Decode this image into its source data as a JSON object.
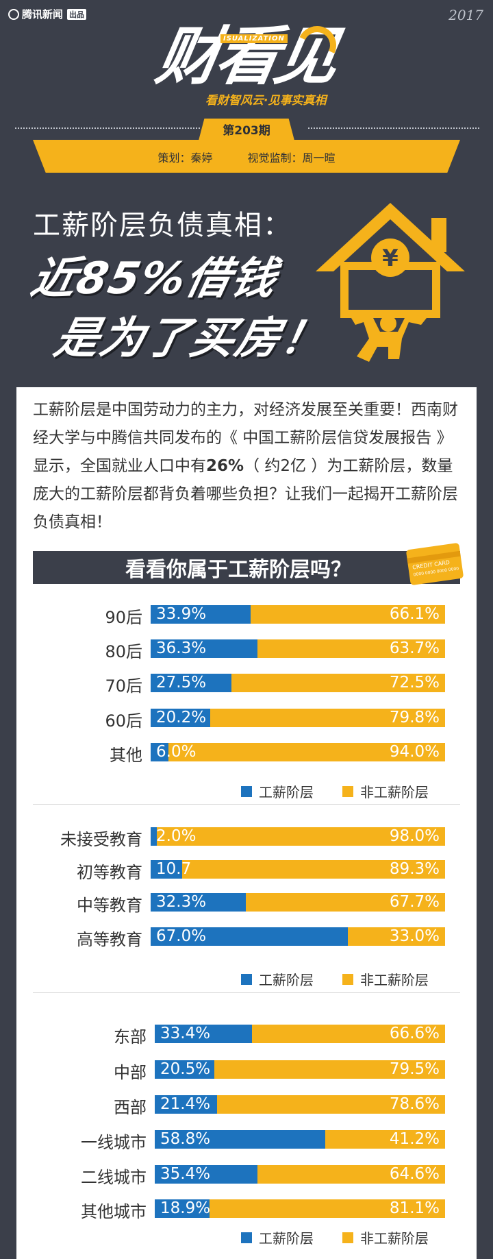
{
  "header": {
    "brand": "腾讯新闻",
    "brand_tag": "出品",
    "year": "2017",
    "title_main": "财看见",
    "title_en": "ISUALIZATION",
    "slogan": "看财智风云·见事实真相",
    "issue": "第203期",
    "planner": "策划：秦婷",
    "visual": "视觉监制：周一暄"
  },
  "headline": {
    "line1": "工薪阶层负债真相：",
    "line2": "近85%借钱",
    "line3": "是为了买房！",
    "house_symbol": "¥"
  },
  "intro": {
    "part1": "工薪阶层是中国劳动力的主力，对经济发展至关重要！西南财经大学与中腾信共同发布的《 中国工薪阶层信贷发展报告 》显示，全国就业人口中有",
    "highlight": "26%",
    "part2": "（ 约2亿 ）为工薪阶层，数量庞大的工薪阶层都背负着哪些负担？让我们一起揭开工薪阶层负债真相！"
  },
  "section_title": "看看你属于工薪阶层吗？",
  "card": {
    "text1": "CREDIT CARD",
    "text2": "0000 0000 0000 0000"
  },
  "colors": {
    "working": "#1d73be",
    "non_working": "#f5b21b",
    "background": "#3b3f4a"
  },
  "legend": {
    "working": "工薪阶层",
    "non_working": "非工薪阶层"
  },
  "chart_data": [
    {
      "type": "bar",
      "stacked": true,
      "orientation": "horizontal",
      "categories": [
        "90后",
        "80后",
        "70后",
        "60后",
        "其他"
      ],
      "series": [
        {
          "name": "工薪阶层",
          "values": [
            33.9,
            36.3,
            27.5,
            20.2,
            6.0
          ],
          "labels": [
            "33.9%",
            "36.3%",
            "27.5%",
            "20.2%",
            "6.0%"
          ]
        },
        {
          "name": "非工薪阶层",
          "values": [
            66.1,
            63.7,
            72.5,
            79.8,
            94.0
          ],
          "labels": [
            "66.1%",
            "63.7%",
            "72.5%",
            "79.8%",
            "94.0%"
          ]
        }
      ],
      "xlim": [
        0,
        100
      ],
      "legend": "bottom"
    },
    {
      "type": "bar",
      "stacked": true,
      "orientation": "horizontal",
      "categories": [
        "未接受教育",
        "初等教育",
        "中等教育",
        "高等教育"
      ],
      "series": [
        {
          "name": "工薪阶层",
          "values": [
            2.0,
            10.7,
            32.3,
            67.0
          ],
          "labels": [
            "2.0%",
            "10.7",
            "32.3%",
            "67.0%"
          ]
        },
        {
          "name": "非工薪阶层",
          "values": [
            98.0,
            89.3,
            67.7,
            33.0
          ],
          "labels": [
            "98.0%",
            "89.3%",
            "67.7%",
            "33.0%"
          ]
        }
      ],
      "xlim": [
        0,
        100
      ],
      "legend": "bottom"
    },
    {
      "type": "bar",
      "stacked": true,
      "orientation": "horizontal",
      "categories": [
        "东部",
        "中部",
        "西部",
        "一线城市",
        "二线城市",
        "其他城市"
      ],
      "series": [
        {
          "name": "工薪阶层",
          "values": [
            33.4,
            20.5,
            21.4,
            58.8,
            35.4,
            18.9
          ],
          "labels": [
            "33.4%",
            "20.5%",
            "21.4%",
            "58.8%",
            "35.4%",
            "18.9%"
          ]
        },
        {
          "name": "非工薪阶层",
          "values": [
            66.6,
            79.5,
            78.6,
            41.2,
            64.6,
            81.1
          ],
          "labels": [
            "66.6%",
            "79.5%",
            "78.6%",
            "41.2%",
            "64.6%",
            "81.1%"
          ]
        }
      ],
      "xlim": [
        0,
        100
      ],
      "legend": "bottom"
    }
  ]
}
